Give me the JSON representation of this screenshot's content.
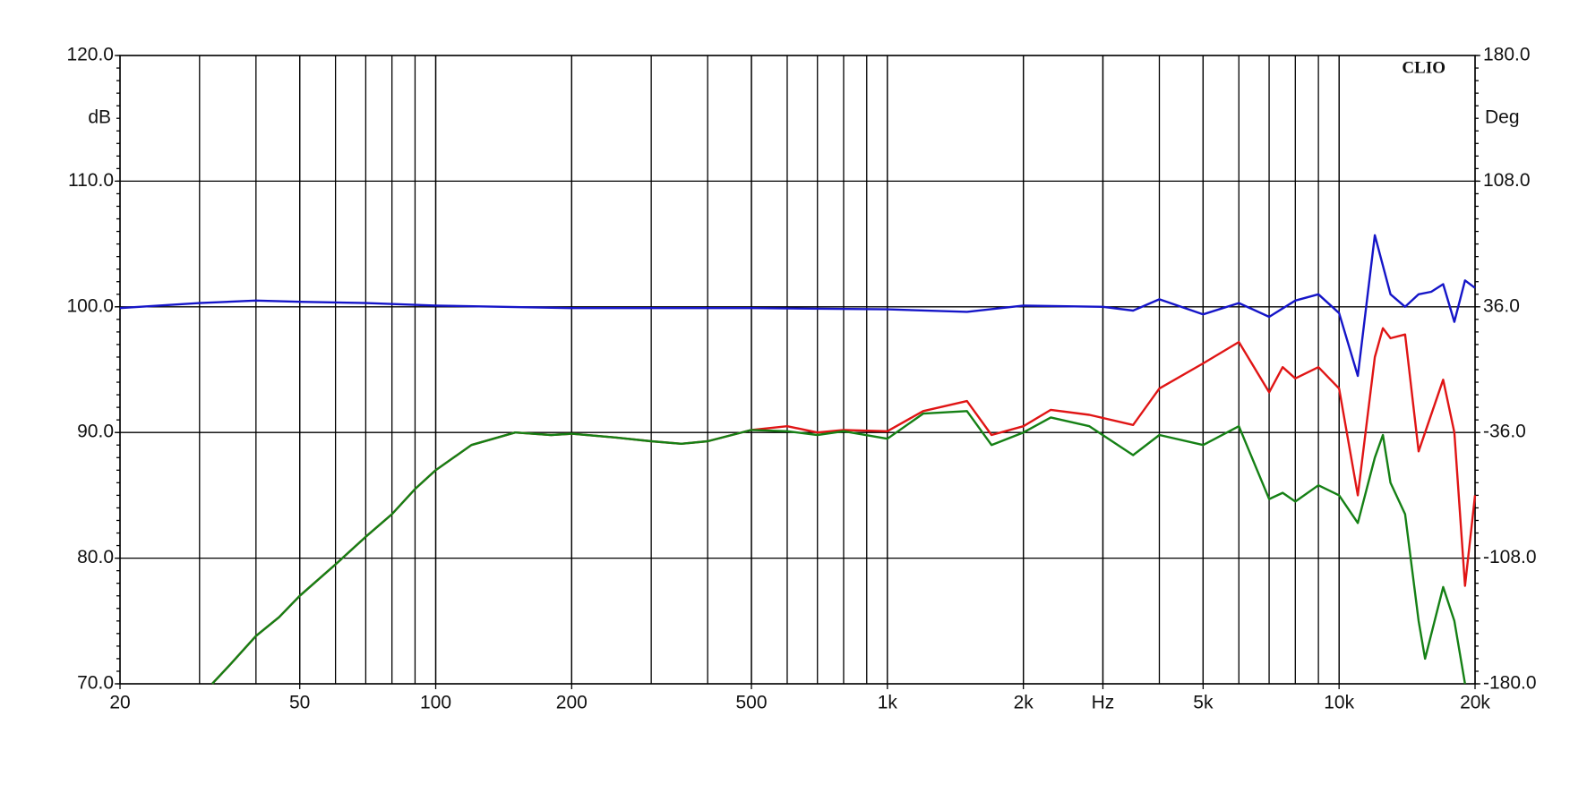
{
  "chart_data": {
    "type": "line",
    "log_x": true,
    "grid": true,
    "annotation": "CLIO",
    "ylabel": "dB",
    "y2label": "Deg",
    "xlim": [
      20,
      20000
    ],
    "xticks": [
      20,
      50,
      100,
      200,
      500,
      {
        "value": 1000,
        "label": "1k"
      },
      {
        "value": 2000,
        "label": "2k"
      },
      {
        "value": 3000,
        "label": "Hz"
      },
      {
        "value": 5000,
        "label": "5k"
      },
      {
        "value": 10000,
        "label": "10k"
      },
      {
        "value": 20000,
        "label": "20k"
      }
    ],
    "ylim": [
      70,
      120
    ],
    "yticks": [
      {
        "value": 70,
        "label": "70.0"
      },
      {
        "value": 80,
        "label": "80.0"
      },
      {
        "value": 90,
        "label": "90.0"
      },
      {
        "value": 100,
        "label": "100.0"
      },
      {
        "value": 110,
        "label": "110.0"
      },
      {
        "value": 120,
        "label": "120.0"
      }
    ],
    "y2lim": [
      -180,
      180
    ],
    "y2ticks": [
      {
        "value": -180,
        "label": "-180.0"
      },
      {
        "value": -108,
        "label": "-108.0"
      },
      {
        "value": -36,
        "label": "-36.0"
      },
      {
        "value": 36,
        "label": "36.0"
      },
      {
        "value": 108,
        "label": "108.0"
      },
      {
        "value": 180,
        "label": "180.0"
      }
    ],
    "series": [
      {
        "color": "#1515c8",
        "x": [
          20,
          30,
          40,
          50,
          70,
          100,
          200,
          500,
          1000,
          1500,
          2000,
          3000,
          3500,
          4000,
          5000,
          6000,
          7000,
          8000,
          9000,
          10000,
          11000,
          12000,
          13000,
          14000,
          15000,
          16000,
          17000,
          18000,
          19000,
          20000
        ],
        "values": [
          99.9,
          100.3,
          100.5,
          100.4,
          100.3,
          100.1,
          99.9,
          99.9,
          99.8,
          99.6,
          100.1,
          100,
          99.7,
          100.6,
          99.4,
          100.3,
          99.2,
          100.5,
          101,
          99.5,
          94.5,
          105.7,
          101,
          100,
          101,
          101.2,
          101.8,
          98.8,
          102.1,
          101.5
        ]
      },
      {
        "color": "#e01515",
        "x": [
          32,
          35,
          40,
          45,
          50,
          60,
          70,
          80,
          90,
          100,
          120,
          150,
          180,
          200,
          250,
          300,
          350,
          400,
          500,
          600,
          700,
          800,
          1000,
          1200,
          1500,
          1700,
          2000,
          2300,
          2800,
          3500,
          4000,
          5000,
          6000,
          7000,
          7500,
          8000,
          9000,
          10000,
          11000,
          12000,
          12500,
          13000,
          14000,
          15000,
          17000,
          18000,
          19000,
          20000
        ],
        "values": [
          70,
          71.5,
          73.8,
          75.3,
          77,
          79.5,
          81.7,
          83.5,
          85.5,
          87,
          89,
          90,
          89.8,
          89.9,
          89.6,
          89.3,
          89.1,
          89.3,
          90.2,
          90.5,
          90,
          90.2,
          90.1,
          91.7,
          92.5,
          89.8,
          90.5,
          91.8,
          91.4,
          90.6,
          93.5,
          95.5,
          97.2,
          93.2,
          95.2,
          94.3,
          95.2,
          93.5,
          85,
          96,
          98.3,
          97.5,
          97.8,
          88.5,
          94.2,
          90,
          77.8,
          85
        ]
      },
      {
        "color": "#158015",
        "x": [
          32,
          35,
          40,
          45,
          50,
          60,
          70,
          80,
          90,
          100,
          120,
          150,
          180,
          200,
          250,
          300,
          350,
          400,
          500,
          600,
          700,
          800,
          1000,
          1200,
          1500,
          1700,
          2000,
          2300,
          2800,
          3500,
          4000,
          5000,
          6000,
          7000,
          7500,
          8000,
          9000,
          10000,
          11000,
          12000,
          12500,
          13000,
          14000,
          15000,
          15500,
          17000,
          18000,
          19000
        ],
        "values": [
          70,
          71.5,
          73.8,
          75.3,
          77,
          79.5,
          81.7,
          83.5,
          85.5,
          87,
          89,
          90,
          89.8,
          89.9,
          89.6,
          89.3,
          89.1,
          89.3,
          90.2,
          90.1,
          89.8,
          90.1,
          89.5,
          91.5,
          91.7,
          89,
          90,
          91.2,
          90.5,
          88.2,
          89.8,
          89,
          90.5,
          84.7,
          85.2,
          84.5,
          85.8,
          85,
          82.8,
          88,
          89.8,
          86,
          83.5,
          75,
          72,
          77.7,
          75,
          70
        ]
      }
    ]
  }
}
